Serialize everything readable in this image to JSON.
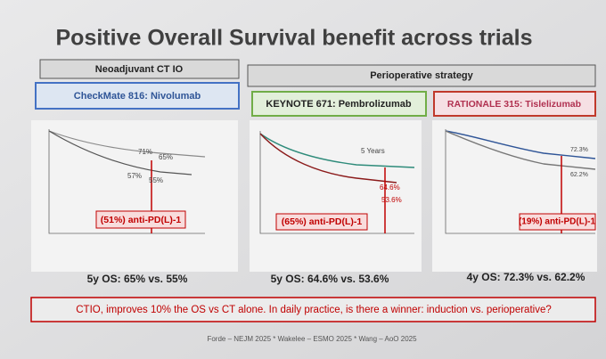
{
  "title": "Positive Overall Survival benefit across trials",
  "groups": [
    {
      "label": "Neoadjuvant CT IO"
    },
    {
      "label": "Perioperative strategy"
    }
  ],
  "panels": [
    {
      "trial": "CheckMate 816: Nivolumab",
      "annotations": [
        "71%",
        "65%",
        "57%",
        "55%"
      ],
      "overlay": "(51%) anti-PD(L)-1",
      "summary": "5y OS: 65% vs. 55%"
    },
    {
      "trial": "KEYNOTE 671: Pembrolizumab",
      "annotations": [
        "5 Years",
        "64.6%",
        "53.6%"
      ],
      "overlay": "(65%) anti-PD(L)-1",
      "summary": "5y OS: 64.6% vs. 53.6%"
    },
    {
      "trial": "RATIONALE 315: Tislelizumab",
      "annotations": [
        "72.3%",
        "62.2%"
      ],
      "overlay": "(19%) anti-PD(L)-1",
      "summary": "4y OS: 72.3% vs. 62.2%"
    }
  ],
  "banner": "CTIO, improves 10% the OS vs CT alone. In daily practice, is there a winner: induction vs. perioperative?",
  "footer": "Forde – NEJM 2025 * Wakelee – ESMO 2025 * Wang – AoO 2025"
}
